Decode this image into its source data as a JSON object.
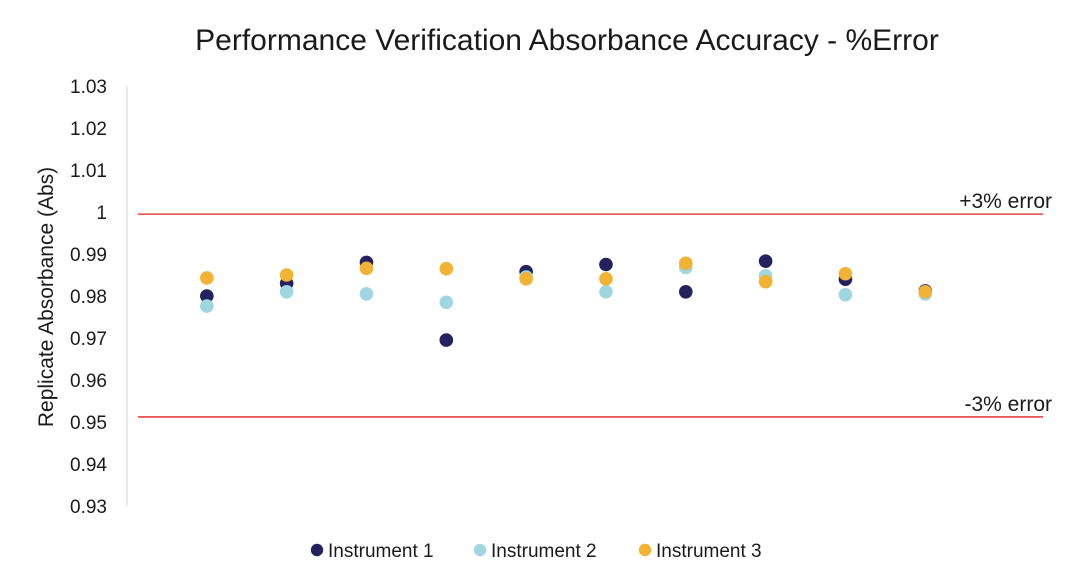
{
  "chart_data": {
    "type": "scatter",
    "title": "Performance Verification Absorbance Accuracy - %Error",
    "xlabel": "",
    "ylabel": "Replicate Absorbance (Abs)",
    "ylim": [
      0.93,
      1.03
    ],
    "yticks": [
      "0.93",
      "0.94",
      "0.95",
      "0.96",
      "0.97",
      "0.98",
      "0.99",
      "1",
      "1.01",
      "1.02",
      "1.03"
    ],
    "x": [
      1,
      2,
      3,
      4,
      5,
      6,
      7,
      8,
      9,
      10
    ],
    "xlim": [
      0.0,
      11.5
    ],
    "grid": false,
    "legend_position": "bottom",
    "series": [
      {
        "name": "Instrument 1",
        "color": "#24215e",
        "values": [
          0.98,
          0.983,
          0.988,
          0.9695,
          0.9858,
          0.9875,
          0.981,
          0.9883,
          0.984,
          0.9812
        ]
      },
      {
        "name": "Instrument 2",
        "color": "#9fd6df",
        "values": [
          0.9776,
          0.981,
          0.9805,
          0.9785,
          0.9845,
          0.981,
          0.9868,
          0.9848,
          0.9803,
          0.9805
        ]
      },
      {
        "name": "Instrument 3",
        "color": "#f2b233",
        "values": [
          0.9843,
          0.985,
          0.9866,
          0.9865,
          0.9841,
          0.9841,
          0.9878,
          0.9834,
          0.9853,
          0.981
        ]
      }
    ],
    "reference_lines": [
      {
        "value": 0.9995,
        "label": "+3% error",
        "color": "#e02020"
      },
      {
        "value": 0.9512,
        "label": "-3% error",
        "color": "#e02020"
      }
    ]
  }
}
